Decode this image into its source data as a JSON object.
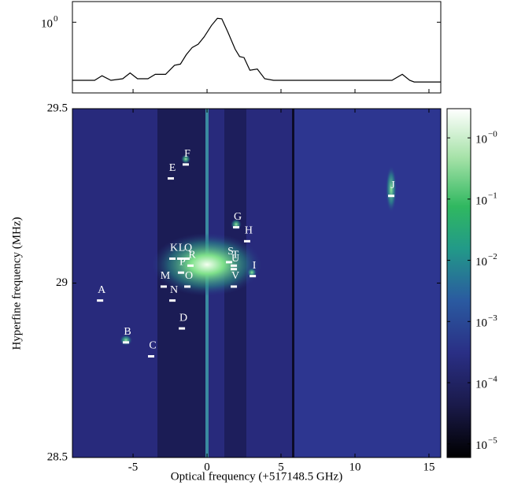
{
  "chart_data": [
    {
      "type": "line",
      "x": [
        -9.1,
        -7.6,
        -7.1,
        -6.5,
        -5.7,
        -5.2,
        -4.7,
        -4.0,
        -3.5,
        -2.8,
        -2.2,
        -1.8,
        -1.4,
        -1.0,
        -0.6,
        -0.2,
        0.3,
        0.7,
        1.0,
        1.4,
        1.9,
        2.2,
        2.5,
        2.9,
        3.4,
        3.9,
        4.5,
        6,
        10,
        12.5,
        13.2,
        13.7,
        14,
        15.8
      ],
      "values": [
        0.32,
        0.32,
        0.35,
        0.32,
        0.33,
        0.37,
        0.33,
        0.33,
        0.36,
        0.36,
        0.43,
        0.44,
        0.53,
        0.61,
        0.65,
        0.75,
        0.94,
        1.08,
        1.07,
        0.83,
        0.59,
        0.51,
        0.5,
        0.39,
        0.4,
        0.33,
        0.32,
        0.32,
        0.32,
        0.32,
        0.36,
        0.32,
        0.31,
        0.31
      ],
      "color": "#000000",
      "xlim": [
        -9.1,
        15.8
      ],
      "ylim": [
        0.25,
        1.5
      ],
      "yscale": "log",
      "yticks": [
        {
          "value": 1,
          "label": "10",
          "exponent": "0"
        }
      ]
    },
    {
      "type": "scatter",
      "xlabel": "Optical frequency (+517148.5 GHz)",
      "ylabel": "Hyperfine frequency (MHz)",
      "labels": [
        "A",
        "B",
        "C",
        "D",
        "E",
        "F",
        "G",
        "H",
        "I",
        "J",
        "K",
        "L",
        "M",
        "N",
        "O",
        "P",
        "Q",
        "R",
        "S",
        "T",
        "U",
        "V"
      ],
      "x": [
        -7.23,
        -5.48,
        -3.78,
        -1.7,
        -2.45,
        -1.44,
        1.97,
        2.71,
        3.09,
        12.45,
        -2.34,
        -1.81,
        -2.93,
        -2.34,
        -1.33,
        -1.76,
        -1.38,
        -1.12,
        1.49,
        1.81,
        1.81,
        1.81
      ],
      "y": [
        28.95,
        28.83,
        28.79,
        28.87,
        29.3,
        29.34,
        29.16,
        29.12,
        29.02,
        29.25,
        29.07,
        29.07,
        28.99,
        28.95,
        28.99,
        29.03,
        29.07,
        29.05,
        29.06,
        29.05,
        29.04,
        28.99
      ],
      "color": "#ffffff",
      "xlim": [
        -9.1,
        15.8
      ],
      "ylim": [
        28.5,
        29.5
      ],
      "xticks": [
        -5,
        0,
        5,
        10,
        15
      ],
      "yticks": [
        28.5,
        29,
        29.5
      ],
      "colorbar": {
        "scale": "log",
        "lim": [
          6e-06,
          3
        ],
        "ticks": [
          {
            "value": 1,
            "label": "10",
            "exponent": "−0"
          },
          {
            "value": 0.1,
            "label": "10",
            "exponent": "−1"
          },
          {
            "value": 0.01,
            "label": "10",
            "exponent": "−2"
          },
          {
            "value": 0.001,
            "label": "10",
            "exponent": "−3"
          },
          {
            "value": 0.0001,
            "label": "10",
            "exponent": "−4"
          },
          {
            "value": 1e-05,
            "label": "10",
            "exponent": "−5"
          }
        ]
      }
    }
  ]
}
